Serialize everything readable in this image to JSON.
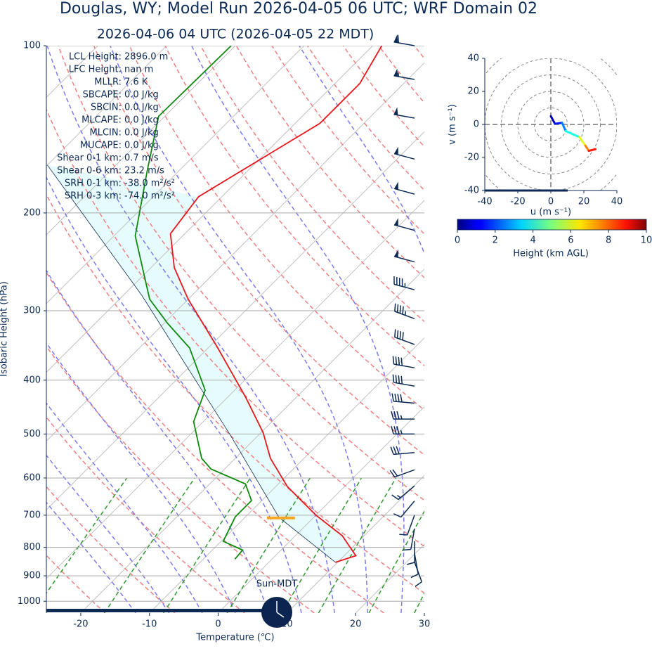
{
  "chart_data": {
    "type": "skewt",
    "title": "Douglas, WY; Model Run 2026-04-05 06 UTC; WRF Domain 02",
    "subtitle": "2026-04-06 04 UTC  (2026-04-05 22 MDT)",
    "x_label": "Temperature (℃)",
    "y_label": "Isobaric Height (hPa)",
    "xlim": [
      -25,
      30
    ],
    "ylim": [
      100,
      1050
    ],
    "log_y": true,
    "xticks": [
      -20,
      -10,
      0,
      10,
      20,
      30
    ],
    "yticks": [
      100,
      200,
      300,
      400,
      500,
      600,
      700,
      800,
      900,
      1000
    ],
    "grid": true,
    "series": [
      {
        "color": "#e8151b",
        "pressure": [
          851,
          828,
          762,
          700,
          622,
          553,
          497,
          430,
          350,
          286,
          251,
          218,
          187,
          138,
          117,
          100
        ],
        "values": [
          9.7,
          11.7,
          6.8,
          0,
          -8.3,
          -14.9,
          -19.7,
          -27.3,
          -38.6,
          -50,
          -56.6,
          -62.1,
          -63.4,
          -56.4,
          -56.4,
          -58.7
        ]
      },
      {
        "color": "#0f8a0f",
        "pressure": [
          840,
          809,
          780,
          705,
          659,
          615,
          578,
          553,
          475,
          417,
          350,
          316,
          286,
          220,
          167,
          134,
          100
        ],
        "values": [
          -5.4,
          -5.6,
          -9.7,
          -11.5,
          -11.5,
          -14.8,
          -22,
          -24.9,
          -31.4,
          -34.3,
          -42.7,
          -49.5,
          -55.6,
          -66.9,
          -74.8,
          -80.9,
          -80.6
        ]
      },
      {
        "color": "#0b2a55",
        "pressure": [
          851,
          706,
          505,
          281,
          164
        ],
        "values": [
          9.7,
          -5.1,
          -23.8,
          -57.4,
          -90
        ]
      }
    ],
    "fill_color": "#e6fcfc",
    "lcl": {
      "pressure": 708,
      "temperature": -4.7,
      "color": "#f5a623"
    },
    "annotations": [
      {
        "label": "LCL Height:",
        "value": "2896.0 m"
      },
      {
        "label": "LFC Height:",
        "value": "nan m"
      },
      {
        "label": "MLLR:",
        "value": "7.6 K"
      },
      {
        "label": "SBCAPE:",
        "value": "0.0 J/kg"
      },
      {
        "label": "SBCIN:",
        "value": "0.0 J/kg"
      },
      {
        "label": "MLCAPE:",
        "value": "0.0 J/kg"
      },
      {
        "label": "MLCIN:",
        "value": "0.0 J/kg"
      },
      {
        "label": "MUCAPE:",
        "value": "0.0 J/kg"
      },
      {
        "label": "Shear 0-1 km:",
        "value": "0.7 m/s"
      },
      {
        "label": "Shear 0-6 km:",
        "value": "23.2 m/s"
      },
      {
        "label": "SRH 0-1 km:",
        "value": "-38.0 m²/s²"
      },
      {
        "label": "SRH 0-3 km:",
        "value": "-74.0 m²/s²"
      }
    ],
    "barbs": {
      "color": "#0b2a55",
      "pressure": [
        100,
        115,
        135,
        160,
        185,
        215,
        245,
        275,
        310,
        345,
        380,
        410,
        440,
        470,
        500,
        540,
        580,
        620,
        660,
        700,
        740,
        780,
        820,
        850
      ],
      "speed": [
        60,
        55,
        50,
        50,
        50,
        50,
        50,
        45,
        45,
        40,
        40,
        40,
        40,
        35,
        35,
        30,
        20,
        15,
        10,
        10,
        10,
        10,
        10,
        10
      ],
      "direction": [
        280,
        280,
        280,
        285,
        285,
        285,
        285,
        285,
        290,
        290,
        280,
        280,
        275,
        270,
        270,
        265,
        250,
        230,
        220,
        200,
        190,
        180,
        170,
        160
      ]
    },
    "clock_label": "Sun-MDT",
    "hodograph": {
      "u": [
        0,
        2.5,
        6.8,
        9,
        17.4,
        20.9,
        23,
        27
      ],
      "v": [
        5,
        0.4,
        1,
        -4,
        -7.7,
        -12.8,
        -16,
        -15
      ],
      "height": [
        0,
        1,
        2,
        3,
        5,
        7,
        8,
        9
      ],
      "xlim": [
        -40,
        40
      ],
      "ylim": [
        -40,
        40
      ],
      "xticks": [
        -40,
        -20,
        0,
        20,
        40
      ],
      "yticks": [
        -40,
        -20,
        0,
        20,
        40
      ],
      "rings": [
        10,
        20,
        30,
        40,
        50
      ],
      "x_label": "u (m s⁻¹)",
      "y_label": "v (m s⁻¹)",
      "colorbar": {
        "label": "Height (km AGL)",
        "lim": [
          0,
          10
        ],
        "ticks": [
          0,
          2,
          4,
          6,
          8,
          10
        ]
      }
    }
  }
}
